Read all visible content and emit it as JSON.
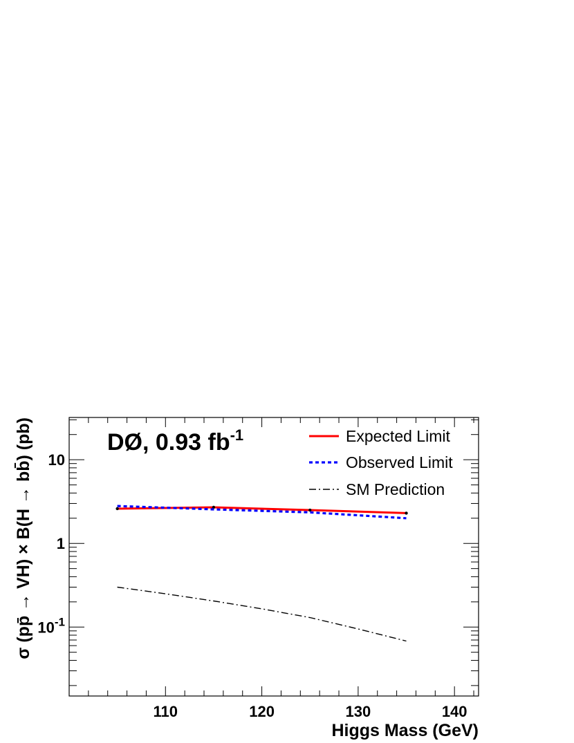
{
  "chart_data": {
    "type": "line",
    "xlabel": "Higgs Mass (GeV)",
    "ylabel": "σ (pp̄ → VH) × B(H → bb̄) (pb)",
    "xlim": [
      100,
      142.5
    ],
    "ylim": [
      0.015,
      32
    ],
    "y_scale": "log",
    "x_ticks": [
      110,
      120,
      130,
      140
    ],
    "x_tick_labels": [
      "110",
      "120",
      "130",
      "140"
    ],
    "y_ticks": [
      10,
      1,
      0.1
    ],
    "y_tick_labels": [
      {
        "base": "10",
        "exp": ""
      },
      {
        "base": "1",
        "exp": ""
      },
      {
        "base": "10",
        "exp": "-1"
      }
    ],
    "annotation": {
      "text": "DØ, 0.93 fb",
      "sup": "-1"
    },
    "legend_position": "top-right",
    "grid": false,
    "series": [
      {
        "name": "Expected Limit",
        "color": "#ff0000",
        "style": "solid",
        "x": [
          105,
          115,
          125,
          135
        ],
        "y": [
          2.6,
          2.7,
          2.5,
          2.3
        ],
        "markers": true
      },
      {
        "name": "Observed Limit",
        "color": "#0000ff",
        "style": "dotted",
        "x": [
          105,
          115,
          125,
          135
        ],
        "y": [
          2.8,
          2.55,
          2.35,
          2.0
        ],
        "markers": false
      },
      {
        "name": "SM Prediction",
        "color": "#000000",
        "style": "dashdot",
        "x": [
          105,
          110,
          115,
          120,
          125,
          130,
          135
        ],
        "y": [
          0.3,
          0.25,
          0.205,
          0.165,
          0.13,
          0.095,
          0.068
        ],
        "markers": false
      }
    ]
  }
}
